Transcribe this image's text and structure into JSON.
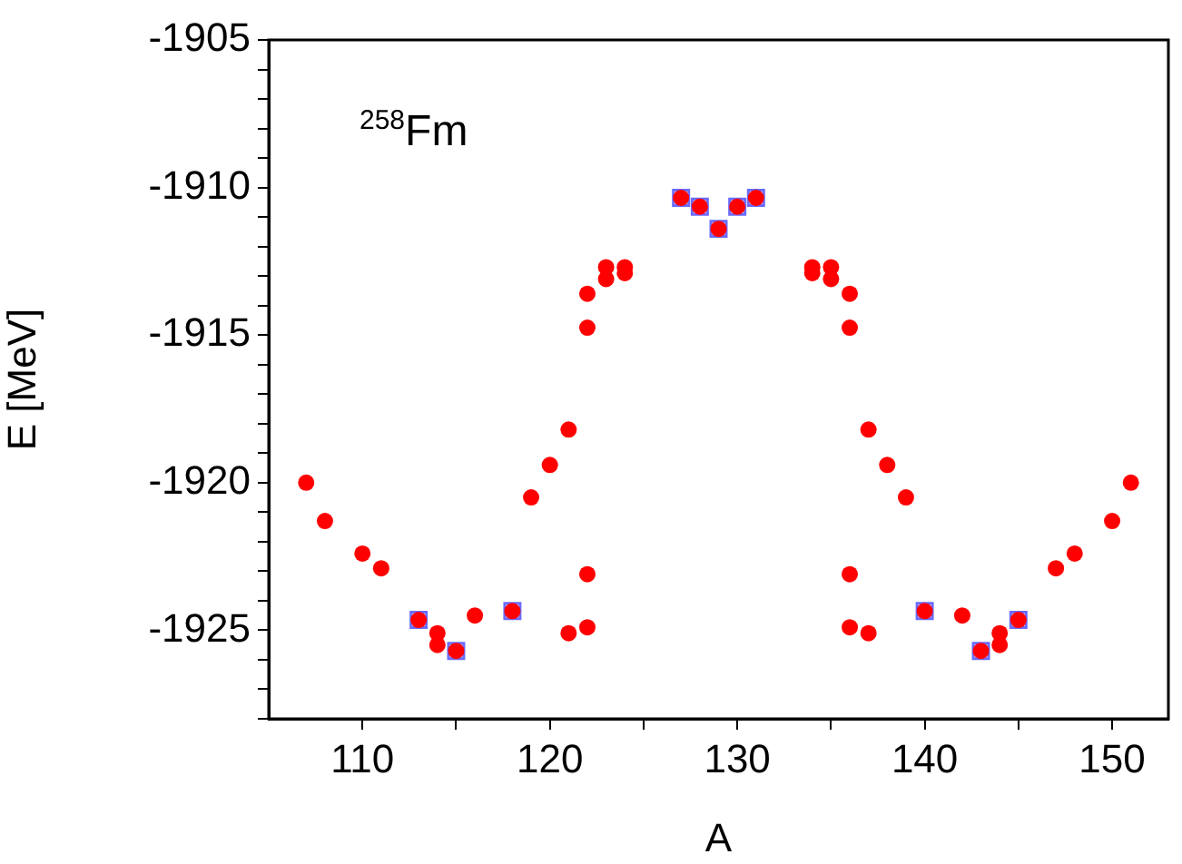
{
  "chart_data": {
    "type": "scatter",
    "xlabel": "A",
    "ylabel": "E [MeV]",
    "annotations": [
      "$^{258}$Fm"
    ],
    "xlim": [
      105,
      153
    ],
    "xticks": [
      110,
      {
        "value": 115,
        "label": null
      },
      120,
      {
        "value": 125,
        "label": null
      },
      130,
      {
        "value": 135,
        "label": null
      },
      140,
      {
        "value": 145,
        "label": null
      },
      150
    ],
    "ylim": [
      -1928,
      -1905
    ],
    "yticks": [
      {
        "value": -1928,
        "label": null
      },
      {
        "value": -1927,
        "label": null
      },
      {
        "value": -1926,
        "label": null
      },
      -1925,
      {
        "value": -1924,
        "label": null
      },
      {
        "value": -1923,
        "label": null
      },
      {
        "value": -1922,
        "label": null
      },
      {
        "value": -1921,
        "label": null
      },
      -1920,
      {
        "value": -1919,
        "label": null
      },
      {
        "value": -1918,
        "label": null
      },
      {
        "value": -1917,
        "label": null
      },
      {
        "value": -1916,
        "label": null
      },
      -1915,
      {
        "value": -1914,
        "label": null
      },
      {
        "value": -1913,
        "label": null
      },
      {
        "value": -1912,
        "label": null
      },
      {
        "value": -1911,
        "label": null
      },
      -1910,
      {
        "value": -1909,
        "label": null
      },
      {
        "value": -1908,
        "label": null
      },
      {
        "value": -1907,
        "label": null
      },
      {
        "value": -1906,
        "label": null
      },
      -1905
    ],
    "grid": false,
    "legend": false,
    "series": [
      {
        "color": "#6b6bff",
        "marker": "square",
        "x": [
          113,
          115,
          118,
          127,
          128,
          129,
          130,
          131,
          140,
          143,
          145
        ],
        "values": [
          -1924.65,
          -1925.7,
          -1924.35,
          -1910.35,
          -1910.65,
          -1911.4,
          -1910.65,
          -1910.35,
          -1924.35,
          -1925.7,
          -1924.65
        ]
      },
      {
        "color": "#ff0000",
        "marker": "circle",
        "x": [
          107,
          108,
          110,
          111,
          113,
          114,
          114,
          115,
          116,
          118,
          119,
          120,
          121,
          121,
          122,
          122,
          122,
          122,
          123,
          123,
          124,
          124,
          127,
          128,
          129,
          130,
          131,
          134,
          134,
          135,
          135,
          136,
          136,
          136,
          136,
          137,
          137,
          138,
          139,
          140,
          142,
          143,
          144,
          144,
          145,
          147,
          148,
          150,
          151
        ],
        "values": [
          -1920.0,
          -1921.3,
          -1922.4,
          -1922.9,
          -1924.65,
          -1925.1,
          -1925.5,
          -1925.7,
          -1924.5,
          -1924.35,
          -1920.5,
          -1919.4,
          -1918.2,
          -1925.1,
          -1913.6,
          -1914.75,
          -1923.1,
          -1924.9,
          -1912.7,
          -1913.1,
          -1912.7,
          -1912.9,
          -1910.35,
          -1910.65,
          -1911.4,
          -1910.65,
          -1910.35,
          -1912.7,
          -1912.9,
          -1912.7,
          -1913.1,
          -1913.6,
          -1914.75,
          -1923.1,
          -1924.9,
          -1918.2,
          -1925.1,
          -1919.4,
          -1920.5,
          -1924.35,
          -1924.5,
          -1925.7,
          -1925.1,
          -1925.5,
          -1924.65,
          -1922.9,
          -1922.4,
          -1921.3,
          -1920.0
        ]
      }
    ]
  }
}
